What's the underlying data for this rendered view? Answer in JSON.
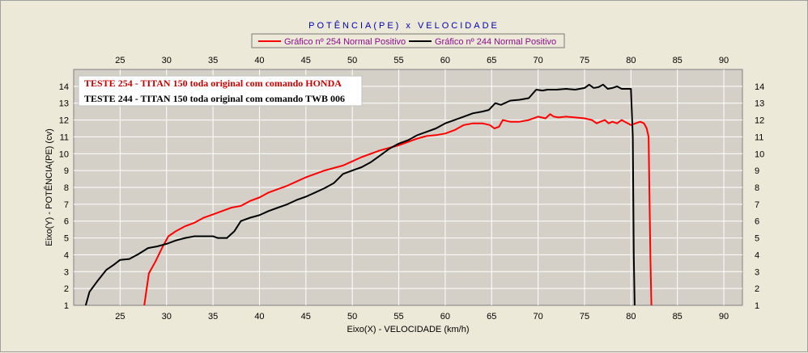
{
  "chart_data": {
    "type": "line",
    "title": "POTÊNCIA(PE)  x  VELOCIDADE",
    "xlabel": "Eixo(X) - VELOCIDADE (km/h)",
    "ylabel": "Eixo(Y) - POTÊNCIA(PE) (cv)",
    "xlim": [
      20,
      92
    ],
    "ylim": [
      1,
      15
    ],
    "x_ticks": [
      25,
      30,
      35,
      40,
      45,
      50,
      55,
      60,
      65,
      70,
      75,
      80,
      85,
      90
    ],
    "y_ticks": [
      1,
      2,
      3,
      4,
      5,
      6,
      7,
      8,
      9,
      10,
      11,
      12,
      13,
      14
    ],
    "grid": true,
    "legend_position": "top-center",
    "background_color": "#d4d0c8",
    "series": [
      {
        "name": "Gráfico nº 254 Normal Positivo",
        "color": "#ff0000",
        "x": [
          27.6,
          28.1,
          28.8,
          29.6,
          30.2,
          31,
          32,
          33,
          34,
          35,
          36,
          37,
          38,
          39,
          40,
          41,
          42,
          43,
          44,
          45,
          46,
          47,
          48,
          49,
          50,
          51,
          52,
          53,
          54,
          55,
          56,
          57,
          58,
          59,
          60,
          61,
          62,
          63,
          64,
          64.8,
          65.3,
          65.8,
          66.2,
          67,
          68,
          69,
          70,
          70.8,
          71.3,
          71.7,
          72.2,
          73,
          74,
          75,
          75.8,
          76.3,
          76.7,
          77.2,
          77.6,
          78,
          78.5,
          79,
          79.5,
          80,
          80.5,
          81,
          81.4,
          81.7,
          81.9,
          82.1,
          82.2
        ],
        "y": [
          1,
          2.9,
          3.6,
          4.5,
          5.1,
          5.4,
          5.7,
          5.9,
          6.2,
          6.4,
          6.6,
          6.8,
          6.9,
          7.2,
          7.4,
          7.7,
          7.9,
          8.1,
          8.35,
          8.6,
          8.8,
          9.0,
          9.15,
          9.3,
          9.55,
          9.8,
          10.0,
          10.2,
          10.35,
          10.5,
          10.7,
          10.9,
          11.05,
          11.1,
          11.2,
          11.4,
          11.7,
          11.8,
          11.8,
          11.7,
          11.5,
          11.6,
          12.0,
          11.9,
          11.9,
          12.0,
          12.2,
          12.1,
          12.35,
          12.2,
          12.15,
          12.2,
          12.15,
          12.1,
          12.0,
          11.8,
          11.9,
          12.0,
          11.8,
          11.9,
          11.8,
          12.0,
          11.85,
          11.7,
          11.8,
          11.9,
          11.8,
          11.5,
          11.0,
          3.7,
          1
        ]
      },
      {
        "name": "Gráfico nº 244 Normal Positivo",
        "color": "#000000",
        "x": [
          21.3,
          21.7,
          22.5,
          23.5,
          24.3,
          25,
          26,
          27,
          28,
          29,
          30,
          31,
          32,
          33,
          34,
          35,
          35.5,
          36,
          36.5,
          37.3,
          38,
          39,
          40,
          41,
          42,
          43,
          44,
          45,
          46,
          47,
          48,
          49,
          50,
          51,
          52,
          53,
          54,
          55,
          56,
          57,
          58,
          59,
          60,
          61,
          62,
          63,
          64,
          64.7,
          65.4,
          66,
          67,
          68,
          69,
          69.8,
          70.5,
          71,
          72,
          73,
          74,
          75,
          75.5,
          76,
          76.5,
          77,
          77.5,
          78,
          78.5,
          79,
          80,
          80.2,
          80.3,
          80.4
        ],
        "y": [
          1,
          1.8,
          2.4,
          3.1,
          3.4,
          3.7,
          3.75,
          4.05,
          4.4,
          4.5,
          4.65,
          4.85,
          5.0,
          5.1,
          5.1,
          5.1,
          5.0,
          5.0,
          5.0,
          5.4,
          6.0,
          6.2,
          6.35,
          6.6,
          6.8,
          7.0,
          7.25,
          7.45,
          7.7,
          7.95,
          8.25,
          8.8,
          9.0,
          9.2,
          9.5,
          9.9,
          10.3,
          10.6,
          10.8,
          11.1,
          11.3,
          11.5,
          11.8,
          12.0,
          12.2,
          12.4,
          12.5,
          12.6,
          13.0,
          12.9,
          13.15,
          13.2,
          13.3,
          13.8,
          13.75,
          13.8,
          13.8,
          13.85,
          13.8,
          13.9,
          14.1,
          13.9,
          13.95,
          14.1,
          13.85,
          13.9,
          14.0,
          13.85,
          13.85,
          11.0,
          4.0,
          1
        ]
      }
    ],
    "annotations": [
      {
        "text": "TESTE 254 - TITAN 150 toda original com comando HONDA",
        "color": "#cc0000"
      },
      {
        "text": "TESTE 244 - TITAN 150 toda original com comando TWB 006",
        "color": "#000000"
      }
    ]
  }
}
